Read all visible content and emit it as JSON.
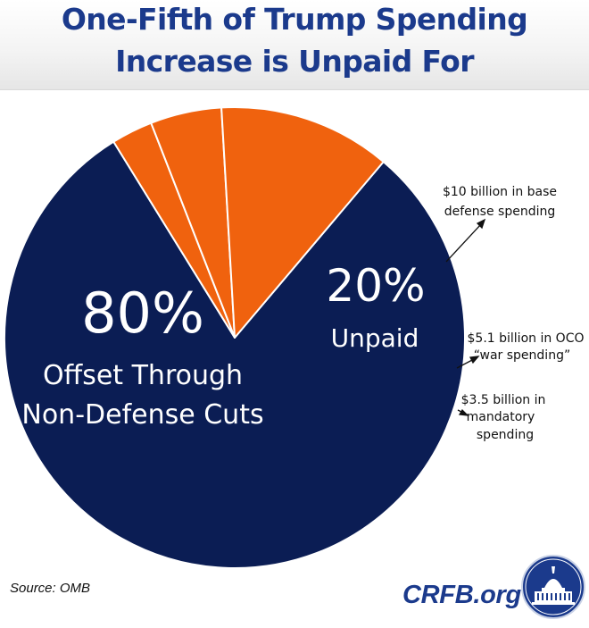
{
  "title_lines": [
    "One-Fifth of Trump Spending",
    "Increase is Unpaid For"
  ],
  "chart_data": {
    "type": "pie",
    "title": "One-Fifth of Trump Spending Increase is Unpaid For",
    "slices": [
      {
        "label": "Offset Through Non-Defense Cuts",
        "value": 80,
        "color": "#0b1d54"
      },
      {
        "label": "$10 billion in base defense spending",
        "value": 12.1,
        "color": "#f0620e"
      },
      {
        "label": "$5.1 billion in OCO “war spending”",
        "value": 5.0,
        "color": "#f0620e"
      },
      {
        "label": "$3.5 billion in mandatory spending",
        "value": 2.9,
        "color": "#f0620e"
      }
    ],
    "big_label": {
      "value": "80%",
      "lines": [
        "Offset Through",
        "Non-Defense Cuts"
      ]
    },
    "group_label": {
      "value": "20%",
      "text": "Unpaid"
    },
    "annotations": [
      {
        "lines": [
          "$10 billion in base",
          "defense spending"
        ]
      },
      {
        "lines": [
          "$5.1 billion in OCO",
          "“war spending”"
        ]
      },
      {
        "lines": [
          "$3.5 billion in",
          "mandatory",
          "spending"
        ]
      }
    ]
  },
  "footer": {
    "source": "Source: OMB",
    "brand": "CRFB.org"
  },
  "colors": {
    "navy": "#0b1d54",
    "orange": "#f0620e",
    "title_blue": "#1b3a8c"
  }
}
